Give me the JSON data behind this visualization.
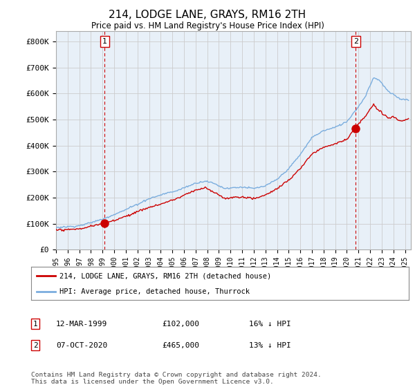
{
  "title": "214, LODGE LANE, GRAYS, RM16 2TH",
  "subtitle": "Price paid vs. HM Land Registry's House Price Index (HPI)",
  "ylabel_ticks": [
    "£0",
    "£100K",
    "£200K",
    "£300K",
    "£400K",
    "£500K",
    "£600K",
    "£700K",
    "£800K"
  ],
  "ytick_values": [
    0,
    100000,
    200000,
    300000,
    400000,
    500000,
    600000,
    700000,
    800000
  ],
  "ylim": [
    0,
    840000
  ],
  "xlim_start": 1995.0,
  "xlim_end": 2025.5,
  "purchase1": {
    "date_num": 1999.19,
    "price": 102000,
    "label": "1"
  },
  "purchase2": {
    "date_num": 2020.77,
    "price": 465000,
    "label": "2"
  },
  "legend_line1": "214, LODGE LANE, GRAYS, RM16 2TH (detached house)",
  "legend_line2": "HPI: Average price, detached house, Thurrock",
  "footnote": "Contains HM Land Registry data © Crown copyright and database right 2024.\nThis data is licensed under the Open Government Licence v3.0.",
  "table_rows": [
    {
      "num": "1",
      "date": "12-MAR-1999",
      "amount": "£102,000",
      "note": "16% ↓ HPI"
    },
    {
      "num": "2",
      "date": "07-OCT-2020",
      "amount": "£465,000",
      "note": "13% ↓ HPI"
    }
  ],
  "hpi_color": "#7aadde",
  "price_color": "#cc0000",
  "marker_color": "#cc0000",
  "vline_color": "#cc0000",
  "grid_color": "#cccccc",
  "bg_color": "#ffffff",
  "chart_bg": "#e8f0f8"
}
